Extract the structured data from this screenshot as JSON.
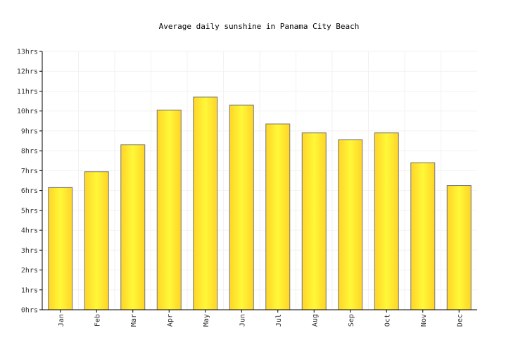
{
  "chart_data": {
    "type": "bar",
    "title": "Average daily sunshine in Panama City Beach",
    "categories": [
      "Jan",
      "Feb",
      "Mar",
      "Apr",
      "May",
      "Jun",
      "Jul",
      "Aug",
      "Sep",
      "Oct",
      "Nov",
      "Dec"
    ],
    "values": [
      6.15,
      6.95,
      8.3,
      10.05,
      10.7,
      10.3,
      9.35,
      8.9,
      8.55,
      8.9,
      7.4,
      6.25
    ],
    "y_tick_labels": [
      "0hrs",
      "1hrs",
      "2hrs",
      "3hrs",
      "4hrs",
      "5hrs",
      "6hrs",
      "7hrs",
      "8hrs",
      "9hrs",
      "10hrs",
      "11hrs",
      "12hrs",
      "13hrs"
    ],
    "ylim": [
      0,
      13
    ],
    "grid": true,
    "colors": {
      "bar_left": "#ffd428",
      "bar_right": "#fff838",
      "bar_stroke": "#777777",
      "grid": "#f2f2f2",
      "axis": "#000000"
    }
  }
}
